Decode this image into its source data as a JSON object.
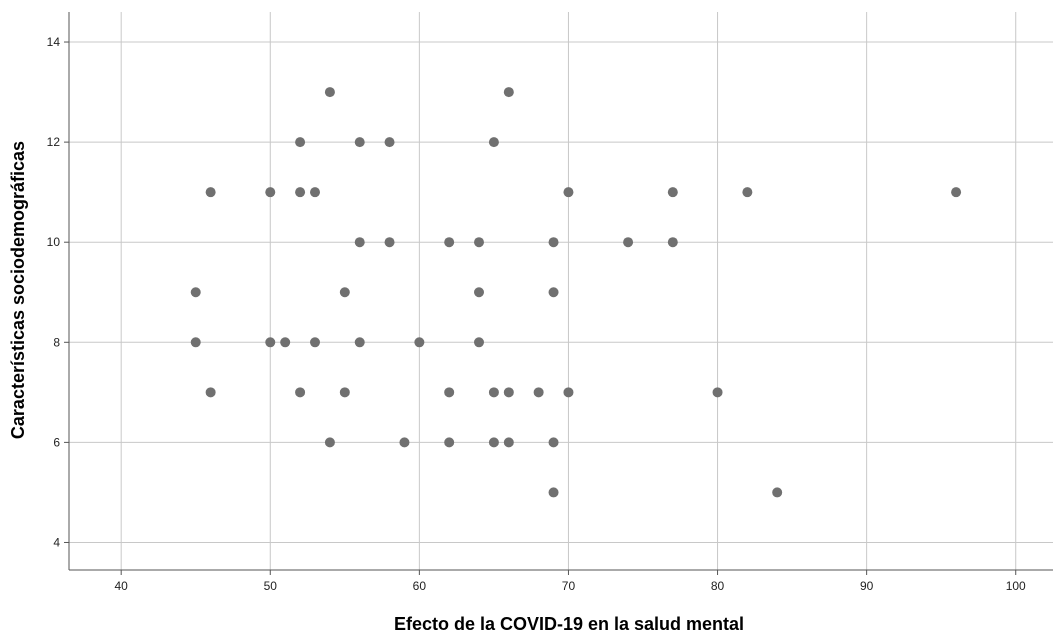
{
  "chart_data": {
    "type": "scatter",
    "title": "",
    "xlabel": "Efecto de la COVID-19 en la salud mental",
    "ylabel": "Características sociodemográficas",
    "xlim": [
      36.5,
      102.5
    ],
    "ylim": [
      3.45,
      14.6
    ],
    "xticks": [
      40,
      50,
      60,
      70,
      80,
      90,
      100
    ],
    "yticks": [
      4,
      6,
      8,
      10,
      12,
      14
    ],
    "grid": true,
    "legend": "none",
    "point_color": "#707070",
    "grid_color": "#c8c8c8",
    "axis_color": "#555555",
    "points": [
      [
        54,
        13
      ],
      [
        66,
        13
      ],
      [
        52,
        12
      ],
      [
        56,
        12
      ],
      [
        58,
        12
      ],
      [
        65,
        12
      ],
      [
        46,
        11
      ],
      [
        50,
        11
      ],
      [
        52,
        11
      ],
      [
        53,
        11
      ],
      [
        70,
        11
      ],
      [
        77,
        11
      ],
      [
        82,
        11
      ],
      [
        96,
        11
      ],
      [
        56,
        10
      ],
      [
        58,
        10
      ],
      [
        62,
        10
      ],
      [
        64,
        10
      ],
      [
        69,
        10
      ],
      [
        74,
        10
      ],
      [
        77,
        10
      ],
      [
        45,
        9
      ],
      [
        55,
        9
      ],
      [
        64,
        9
      ],
      [
        69,
        9
      ],
      [
        45,
        8
      ],
      [
        50,
        8
      ],
      [
        51,
        8
      ],
      [
        53,
        8
      ],
      [
        56,
        8
      ],
      [
        60,
        8
      ],
      [
        64,
        8
      ],
      [
        46,
        7
      ],
      [
        52,
        7
      ],
      [
        55,
        7
      ],
      [
        62,
        7
      ],
      [
        65,
        7
      ],
      [
        66,
        7
      ],
      [
        68,
        7
      ],
      [
        70,
        7
      ],
      [
        80,
        7
      ],
      [
        54,
        6
      ],
      [
        59,
        6
      ],
      [
        62,
        6
      ],
      [
        65,
        6
      ],
      [
        66,
        6
      ],
      [
        69,
        6
      ],
      [
        69,
        5
      ],
      [
        84,
        5
      ]
    ]
  }
}
